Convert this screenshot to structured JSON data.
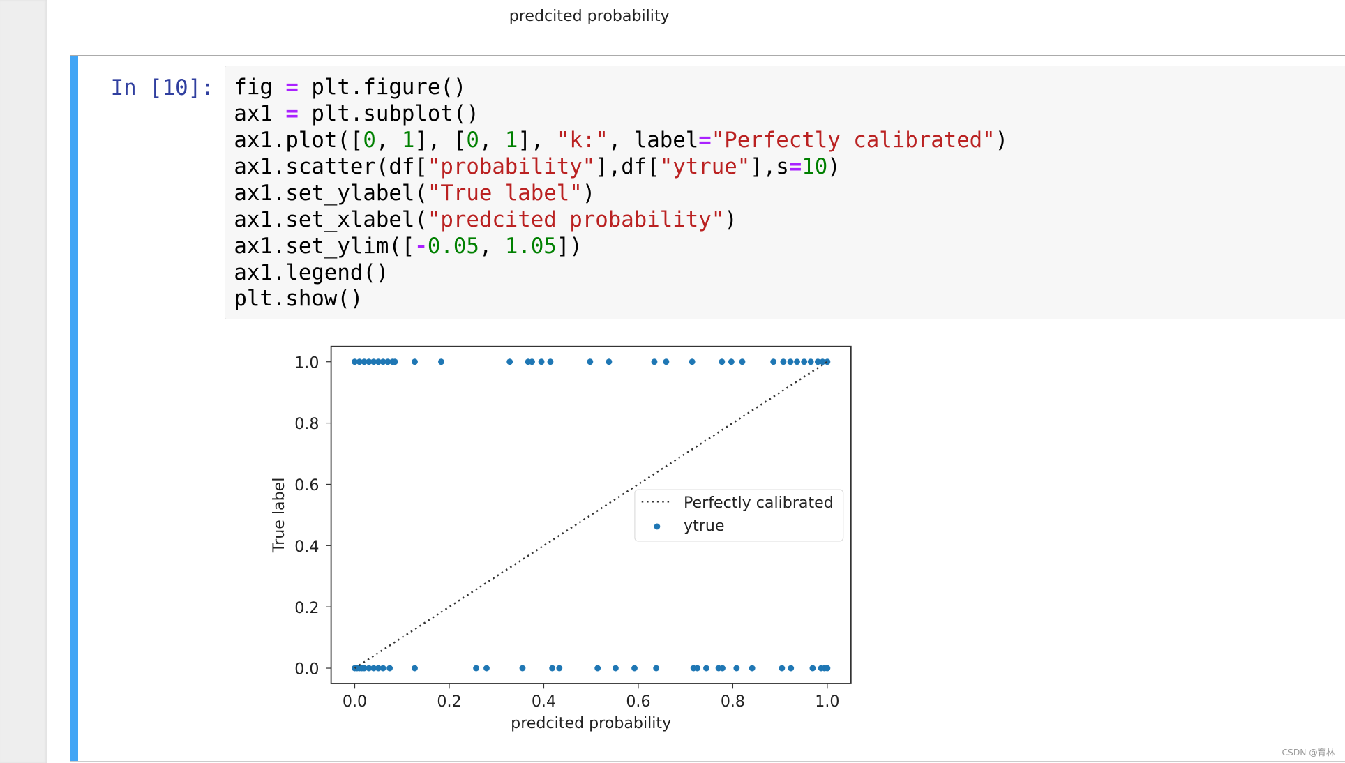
{
  "previous_output": {
    "xlabel": "predcited probability"
  },
  "cell": {
    "prompt": "In [10]:",
    "code_lines": [
      [
        [
          "n",
          "fig "
        ],
        [
          "op",
          "="
        ],
        [
          "n",
          " plt.figure()"
        ]
      ],
      [
        [
          "n",
          "ax1 "
        ],
        [
          "op",
          "="
        ],
        [
          "n",
          " plt.subplot()"
        ]
      ],
      [
        [
          "n",
          "ax1.plot(["
        ],
        [
          "num",
          "0"
        ],
        [
          "n",
          ", "
        ],
        [
          "num",
          "1"
        ],
        [
          "n",
          "], ["
        ],
        [
          "num",
          "0"
        ],
        [
          "n",
          ", "
        ],
        [
          "num",
          "1"
        ],
        [
          "n",
          "], "
        ],
        [
          "str",
          "\"k:\""
        ],
        [
          "n",
          ", label"
        ],
        [
          "op",
          "="
        ],
        [
          "str",
          "\"Perfectly calibrated\""
        ],
        [
          "n",
          ")"
        ]
      ],
      [
        [
          "n",
          "ax1.scatter(df["
        ],
        [
          "str",
          "\"probability\""
        ],
        [
          "n",
          "],df["
        ],
        [
          "str",
          "\"ytrue\""
        ],
        [
          "n",
          "],s"
        ],
        [
          "op",
          "="
        ],
        [
          "num",
          "10"
        ],
        [
          "n",
          ")"
        ]
      ],
      [
        [
          "n",
          "ax1.set_ylabel("
        ],
        [
          "str",
          "\"True label\""
        ],
        [
          "n",
          ")"
        ]
      ],
      [
        [
          "n",
          "ax1.set_xlabel("
        ],
        [
          "str",
          "\"predcited probability\""
        ],
        [
          "n",
          ")"
        ]
      ],
      [
        [
          "n",
          "ax1.set_ylim(["
        ],
        [
          "op",
          "-"
        ],
        [
          "num",
          "0.05"
        ],
        [
          "n",
          ", "
        ],
        [
          "num",
          "1.05"
        ],
        [
          "n",
          "])"
        ]
      ],
      [
        [
          "n",
          "ax1.legend()"
        ]
      ],
      [
        [
          "n",
          "plt.show()"
        ]
      ]
    ]
  },
  "chart_data": {
    "type": "scatter",
    "xlabel": "predcited probability",
    "ylabel": "True label",
    "xlim": [
      -0.05,
      1.05
    ],
    "ylim": [
      -0.05,
      1.05
    ],
    "xticks": [
      "0.0",
      "0.2",
      "0.4",
      "0.6",
      "0.8",
      "1.0"
    ],
    "yticks": [
      "0.0",
      "0.2",
      "0.4",
      "0.6",
      "0.8",
      "1.0"
    ],
    "grid": false,
    "legend_placement": "center-right",
    "series": [
      {
        "name": "Perfectly calibrated",
        "kind": "line",
        "style": "dotted",
        "color": "#000000",
        "x": [
          0,
          1
        ],
        "y": [
          0,
          1
        ]
      },
      {
        "name": "ytrue",
        "kind": "scatter",
        "color": "#1f77b4",
        "x": [
          0.0,
          0.01,
          0.02,
          0.03,
          0.04,
          0.05,
          0.06,
          0.07,
          0.08,
          0.085,
          0.127,
          0.183,
          0.328,
          0.367,
          0.375,
          0.395,
          0.414,
          0.498,
          0.538,
          0.634,
          0.659,
          0.714,
          0.777,
          0.797,
          0.82,
          0.886,
          0.907,
          0.922,
          0.936,
          0.951,
          0.965,
          0.98,
          0.99,
          1.0,
          0.0,
          0.005,
          0.01,
          0.015,
          0.02,
          0.03,
          0.04,
          0.05,
          0.06,
          0.074,
          0.127,
          0.257,
          0.279,
          0.355,
          0.418,
          0.433,
          0.514,
          0.552,
          0.592,
          0.638,
          0.717,
          0.725,
          0.744,
          0.77,
          0.778,
          0.808,
          0.841,
          0.904,
          0.923,
          0.969,
          0.987,
          0.994,
          1.0
        ],
        "y": [
          1,
          1,
          1,
          1,
          1,
          1,
          1,
          1,
          1,
          1,
          1,
          1,
          1,
          1,
          1,
          1,
          1,
          1,
          1,
          1,
          1,
          1,
          1,
          1,
          1,
          1,
          1,
          1,
          1,
          1,
          1,
          1,
          1,
          1,
          0,
          0,
          0,
          0,
          0,
          0,
          0,
          0,
          0,
          0,
          0,
          0,
          0,
          0,
          0,
          0,
          0,
          0,
          0,
          0,
          0,
          0,
          0,
          0,
          0,
          0,
          0,
          0,
          0,
          0,
          0,
          0,
          0
        ]
      }
    ]
  },
  "watermark": "CSDN @育林"
}
